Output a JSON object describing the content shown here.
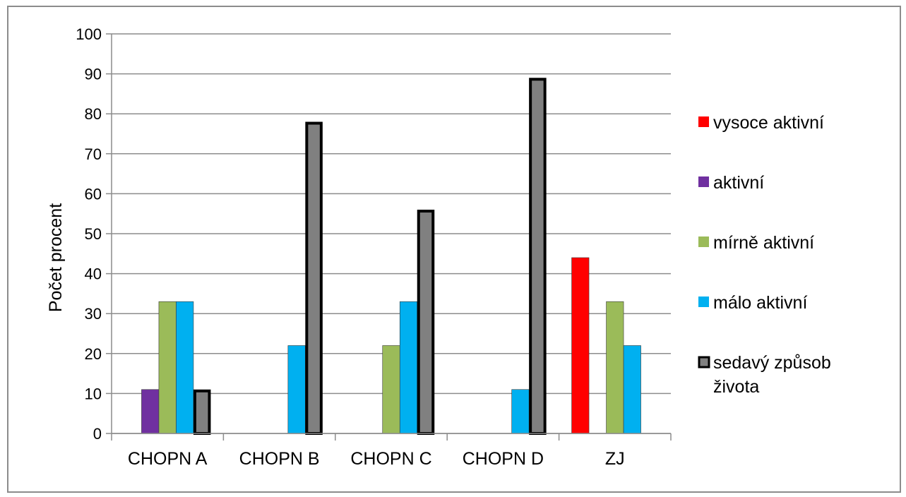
{
  "chart_data": {
    "type": "bar",
    "ylabel": "Počet procent",
    "xlabel": "",
    "ylim": [
      0,
      100
    ],
    "yticks": [
      0,
      10,
      20,
      30,
      40,
      50,
      60,
      70,
      80,
      90,
      100
    ],
    "grid": true,
    "legend_position": "right",
    "categories": [
      "CHOPN A",
      "CHOPN B",
      "CHOPN C",
      "CHOPN D",
      "ZJ"
    ],
    "series": [
      {
        "name": "vysoce aktivní",
        "color": "#ff0000",
        "outline": false,
        "values": [
          0,
          0,
          0,
          0,
          44
        ]
      },
      {
        "name": "aktivní",
        "color": "#7030a0",
        "outline": false,
        "values": [
          11,
          0,
          0,
          0,
          0
        ]
      },
      {
        "name": "mírně aktivní",
        "color": "#9bbb59",
        "outline": false,
        "values": [
          33,
          0,
          22,
          0,
          33
        ]
      },
      {
        "name": "málo aktivní",
        "color": "#00b0f0",
        "outline": false,
        "values": [
          33,
          22,
          33,
          11,
          22
        ]
      },
      {
        "name": "sedavý způsob života",
        "name_lines": [
          "sedavý způsob",
          "života"
        ],
        "color": "#808080",
        "outline": true,
        "values": [
          11,
          78,
          56,
          89,
          0
        ]
      }
    ]
  }
}
